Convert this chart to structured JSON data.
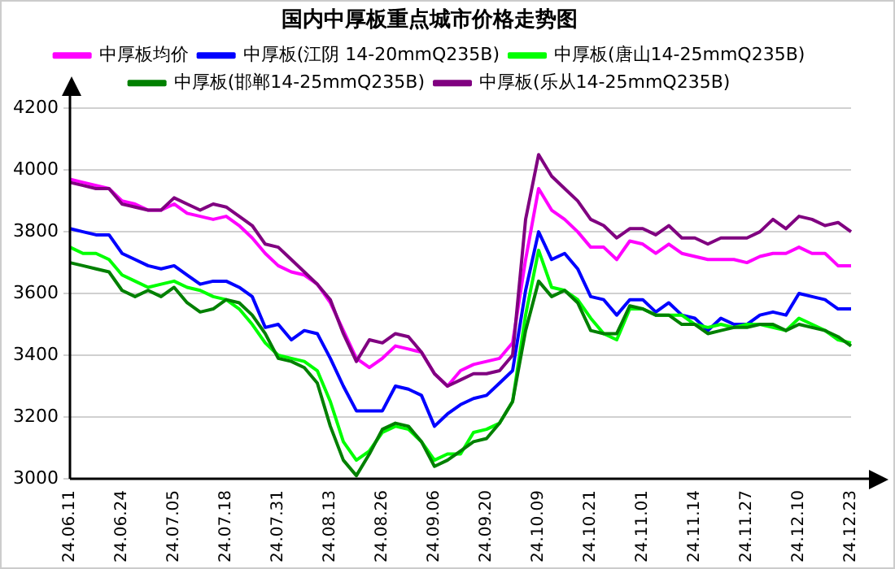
{
  "chart_data": {
    "type": "line",
    "title": "国内中厚板重点城市价格走势图",
    "categories": [
      "24.06.11",
      null,
      null,
      null,
      "24.06.24",
      null,
      null,
      null,
      "24.07.05",
      null,
      null,
      null,
      "24.07.18",
      null,
      null,
      null,
      "24.07.31",
      null,
      null,
      null,
      "24.08.13",
      null,
      null,
      null,
      "24.08.26",
      null,
      null,
      null,
      "24.09.06",
      null,
      null,
      null,
      "24.09.20",
      null,
      null,
      null,
      "24.10.09",
      null,
      null,
      null,
      "24.10.21",
      null,
      null,
      null,
      "24.11.01",
      null,
      null,
      null,
      "24.11.14",
      null,
      null,
      null,
      "24.11.27",
      null,
      null,
      null,
      "24.12.10",
      null,
      null,
      null,
      "24.12.23"
    ],
    "ylim": [
      3000,
      4200
    ],
    "yticks": [
      3000,
      3200,
      3400,
      3600,
      3800,
      4000,
      4200
    ],
    "grid": "y",
    "legend": "top",
    "marker": "none",
    "line_style": "solid",
    "series": [
      {
        "name": "中厚板均价",
        "color": "#ff00ff",
        "values": [
          3970,
          3960,
          3950,
          3940,
          3900,
          3890,
          3870,
          3870,
          3890,
          3860,
          3850,
          3840,
          3850,
          3820,
          3780,
          3730,
          3690,
          3670,
          3660,
          3630,
          3570,
          3480,
          3390,
          3360,
          3390,
          3430,
          3420,
          3410,
          3340,
          3300,
          3350,
          3370,
          3380,
          3390,
          3440,
          3710,
          3940,
          3870,
          3840,
          3800,
          3750,
          3750,
          3710,
          3770,
          3760,
          3730,
          3760,
          3730,
          3720,
          3710,
          3710,
          3710,
          3700,
          3720,
          3730,
          3730,
          3750,
          3730,
          3730,
          3690,
          3690
        ]
      },
      {
        "name": "中厚板(江阴 14-20mmQ235B)",
        "color": "#0000ff",
        "values": [
          3810,
          3800,
          3790,
          3790,
          3730,
          3710,
          3690,
          3680,
          3690,
          3660,
          3630,
          3640,
          3640,
          3620,
          3590,
          3490,
          3500,
          3450,
          3480,
          3470,
          3390,
          3300,
          3220,
          3220,
          3220,
          3300,
          3290,
          3270,
          3170,
          3210,
          3240,
          3260,
          3270,
          3310,
          3350,
          3610,
          3800,
          3710,
          3730,
          3680,
          3590,
          3580,
          3530,
          3580,
          3580,
          3540,
          3570,
          3530,
          3520,
          3480,
          3520,
          3500,
          3500,
          3530,
          3540,
          3530,
          3600,
          3590,
          3580,
          3550,
          3550
        ]
      },
      {
        "name": "中厚板(唐山14-25mmQ235B)",
        "color": "#00ff00",
        "values": [
          3750,
          3730,
          3730,
          3710,
          3660,
          3640,
          3620,
          3630,
          3640,
          3620,
          3610,
          3590,
          3580,
          3550,
          3500,
          3440,
          3400,
          3390,
          3380,
          3350,
          3250,
          3120,
          3060,
          3090,
          3150,
          3170,
          3160,
          3120,
          3060,
          3080,
          3080,
          3150,
          3160,
          3180,
          3250,
          3530,
          3740,
          3620,
          3610,
          3580,
          3520,
          3470,
          3450,
          3550,
          3550,
          3530,
          3530,
          3530,
          3500,
          3490,
          3500,
          3490,
          3500,
          3500,
          3490,
          3480,
          3520,
          3500,
          3480,
          3450,
          3440
        ]
      },
      {
        "name": "中厚板(邯郸14-25mmQ235B)",
        "color": "#008000",
        "values": [
          3700,
          3690,
          3680,
          3670,
          3610,
          3590,
          3610,
          3590,
          3620,
          3570,
          3540,
          3550,
          3580,
          3570,
          3530,
          3470,
          3390,
          3380,
          3360,
          3310,
          3170,
          3060,
          3010,
          3080,
          3160,
          3180,
          3170,
          3120,
          3040,
          3060,
          3090,
          3120,
          3130,
          3180,
          3250,
          3480,
          3640,
          3590,
          3610,
          3570,
          3480,
          3470,
          3470,
          3560,
          3550,
          3530,
          3530,
          3500,
          3500,
          3470,
          3480,
          3490,
          3490,
          3500,
          3500,
          3480,
          3500,
          3490,
          3480,
          3460,
          3430
        ]
      },
      {
        "name": "中厚板(乐从14-25mmQ235B)",
        "color": "#800080",
        "values": [
          3960,
          3950,
          3940,
          3940,
          3890,
          3880,
          3870,
          3870,
          3910,
          3890,
          3870,
          3890,
          3880,
          3850,
          3820,
          3760,
          3750,
          3710,
          3670,
          3630,
          3580,
          3470,
          3380,
          3450,
          3440,
          3470,
          3460,
          3410,
          3340,
          3300,
          3320,
          3340,
          3340,
          3350,
          3400,
          3840,
          4050,
          3980,
          3940,
          3900,
          3840,
          3820,
          3780,
          3810,
          3810,
          3790,
          3820,
          3780,
          3780,
          3760,
          3780,
          3780,
          3780,
          3800,
          3840,
          3810,
          3850,
          3840,
          3820,
          3830,
          3800
        ]
      }
    ]
  }
}
